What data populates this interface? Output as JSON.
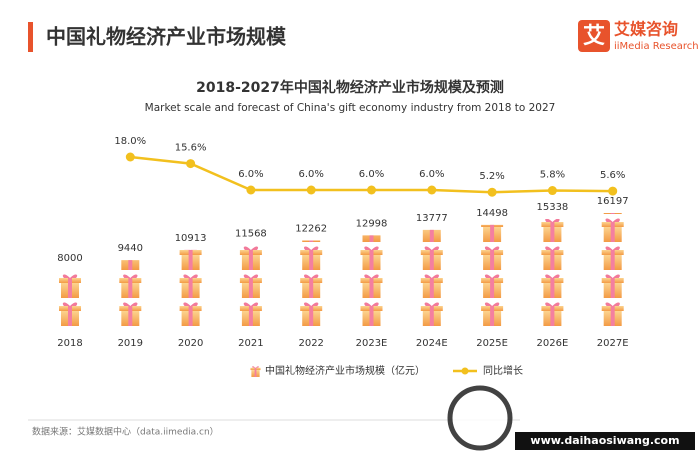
{
  "header": {
    "title": "中国礼物经济产业市场规模",
    "logo_mark": "艾",
    "logo_name": "艾媒咨询",
    "logo_sub": "iiMedia Research"
  },
  "chart_data": {
    "type": "bar",
    "title": "2018-2027年中国礼物经济产业市场规模及预测",
    "subtitle": "Market scale and forecast of China's gift economy industry from 2018 to 2027",
    "categories": [
      "2018",
      "2019",
      "2020",
      "2021",
      "2022",
      "2023E",
      "2024E",
      "2025E",
      "2026E",
      "2027E"
    ],
    "series": [
      {
        "name": "中国礼物经济产业市场规模（亿元）",
        "color": "#f6a04d",
        "values": [
          8000,
          9440,
          10913,
          11568,
          12262,
          12998,
          13777,
          14498,
          15338,
          16197
        ]
      },
      {
        "name": "同比增长",
        "type": "line",
        "axis": "y2",
        "color": "#f2c01e",
        "values": [
          null,
          18.0,
          15.6,
          6.0,
          6.0,
          6.0,
          6.0,
          5.2,
          5.8,
          5.6
        ],
        "value_labels": [
          null,
          "18.0%",
          "15.6%",
          "6.0%",
          "6.0%",
          "6.0%",
          "6.0%",
          "5.2%",
          "5.8%",
          "5.6%"
        ]
      }
    ]
  },
  "footer": {
    "source": "数据来源：艾媒数据中心（data.iimedia.cn）",
    "watermark": "www.daihaosiwang.com"
  }
}
